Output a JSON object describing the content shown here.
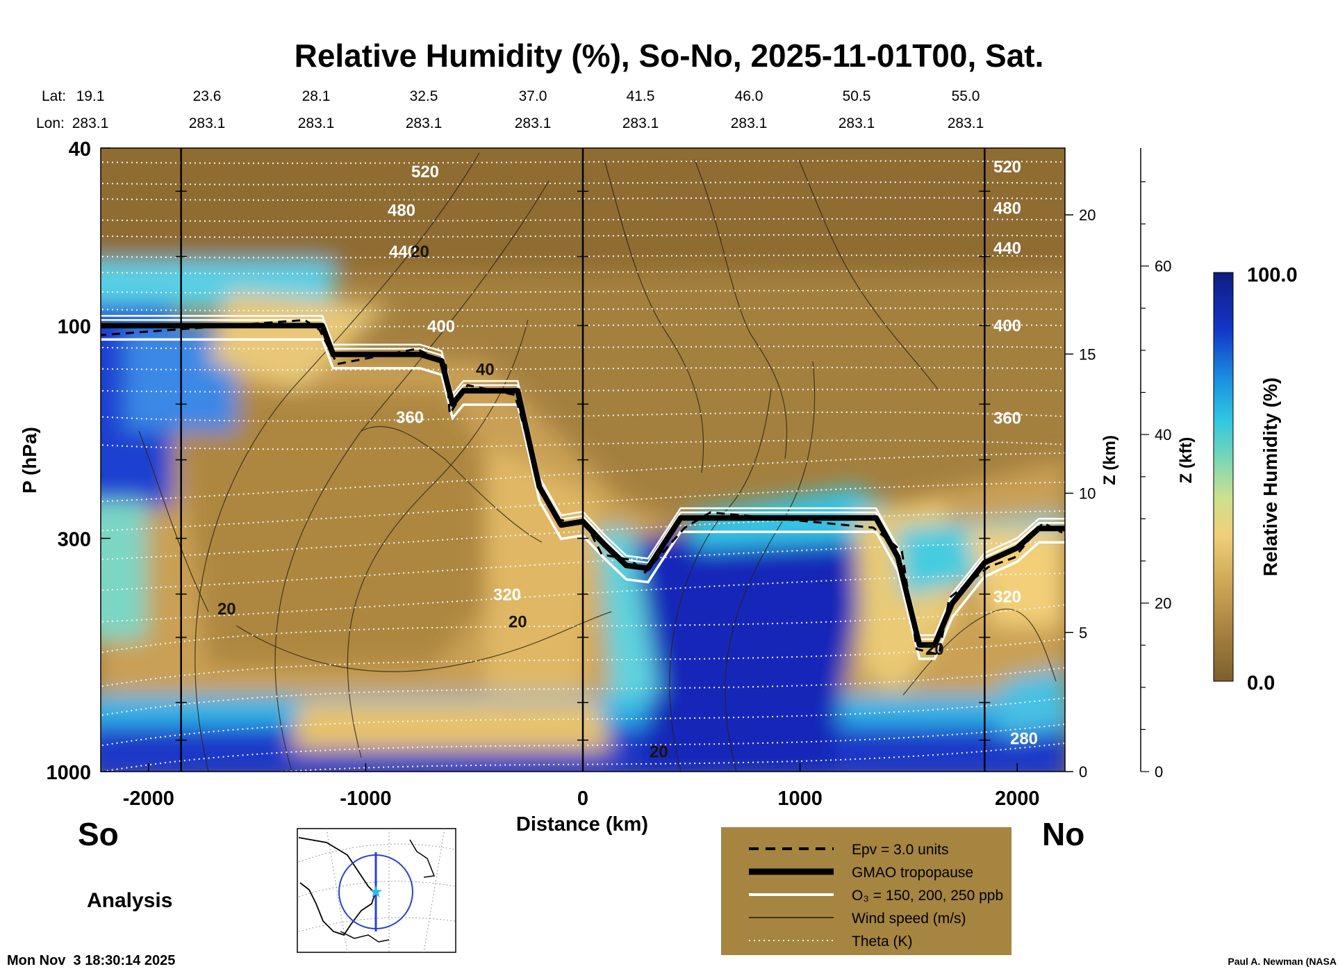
{
  "chart_data": {
    "type": "heatmap",
    "title": "Relative Humidity (%), So-No, 2025-11-01T00, Sat.",
    "xlabel": "Distance (km)",
    "ylabel": "P (hPa)",
    "xlim": [
      -2220,
      2220
    ],
    "x_ticks": [
      -2000,
      -1000,
      0,
      1000,
      2000
    ],
    "y_ticks": [
      40,
      100,
      300,
      1000
    ],
    "ylim": [
      1000,
      40
    ],
    "y_scale": "log",
    "z_km_label": "Z (km)",
    "z_km_ticks": [
      0,
      5,
      10,
      15,
      20
    ],
    "z_kft_label": "Z (kft)",
    "z_kft_ticks": [
      0,
      20,
      40,
      60
    ],
    "colorbar": {
      "label": "Relative Humidity (%)",
      "min_label": "0.0",
      "max_label": "100.0",
      "low_color": "#8a6a32",
      "mid_color": "#e8c571",
      "cyan_color": "#34c8e0",
      "high_color": "#0f1f8c"
    },
    "lat_label": "Lat:",
    "lon_label": "Lon:",
    "latitudes": [
      "19.1",
      "23.6",
      "28.1",
      "32.5",
      "37.0",
      "41.5",
      "46.0",
      "50.5",
      "55.0"
    ],
    "longitudes": [
      "283.1",
      "283.1",
      "283.1",
      "283.1",
      "283.1",
      "283.1",
      "283.1",
      "283.1",
      "283.1"
    ],
    "marker_lines_km": [
      -1850,
      0,
      1850
    ],
    "theta_levels": [
      {
        "label": "520",
        "p": 45
      },
      {
        "label": "480",
        "p": 55
      },
      {
        "label": "440",
        "p": 68
      },
      {
        "label": "400",
        "p": 100
      },
      {
        "label": "360",
        "p": 160
      },
      {
        "label": "320",
        "p": 400
      },
      {
        "label": "280",
        "p": 840
      }
    ],
    "wind_labels": [
      {
        "label": "20",
        "x": -750,
        "p": 68
      },
      {
        "label": "40",
        "x": -450,
        "p": 125
      },
      {
        "label": "20",
        "x": -1640,
        "p": 430
      },
      {
        "label": "20",
        "x": -300,
        "p": 460
      },
      {
        "label": "20",
        "x": 350,
        "p": 900
      },
      {
        "label": "20",
        "x": 1620,
        "p": 530
      }
    ],
    "tropopause": [
      {
        "x": -2220,
        "p": 100
      },
      {
        "x": -1300,
        "p": 100
      },
      {
        "x": -1200,
        "p": 100
      },
      {
        "x": -1150,
        "p": 116
      },
      {
        "x": -750,
        "p": 116
      },
      {
        "x": -650,
        "p": 120
      },
      {
        "x": -600,
        "p": 150
      },
      {
        "x": -550,
        "p": 140
      },
      {
        "x": -300,
        "p": 140
      },
      {
        "x": -200,
        "p": 230
      },
      {
        "x": -100,
        "p": 280
      },
      {
        "x": 0,
        "p": 275
      },
      {
        "x": 100,
        "p": 310
      },
      {
        "x": 200,
        "p": 345
      },
      {
        "x": 300,
        "p": 350
      },
      {
        "x": 450,
        "p": 270
      },
      {
        "x": 600,
        "p": 270
      },
      {
        "x": 1050,
        "p": 270
      },
      {
        "x": 1350,
        "p": 270
      },
      {
        "x": 1450,
        "p": 330
      },
      {
        "x": 1550,
        "p": 520
      },
      {
        "x": 1620,
        "p": 520
      },
      {
        "x": 1700,
        "p": 420
      },
      {
        "x": 1850,
        "p": 340
      },
      {
        "x": 2000,
        "p": 315
      },
      {
        "x": 2100,
        "p": 285
      },
      {
        "x": 2220,
        "p": 285
      }
    ],
    "legend": [
      {
        "label": "Epv = 3.0 units",
        "style": "dashed"
      },
      {
        "label": "GMAO tropopause",
        "style": "thick"
      },
      {
        "label": "O₃ = 150, 200, 250 ppb",
        "style": "white"
      },
      {
        "label": "Wind speed (m/s)",
        "style": "thin"
      },
      {
        "label": "Theta (K)",
        "style": "dotted"
      }
    ]
  },
  "labels": {
    "south": "So",
    "north": "No",
    "mode": "Analysis",
    "timestamp": "Mon Nov  3 18:30:14 2025",
    "credit": "Paul A. Newman (NASA"
  }
}
